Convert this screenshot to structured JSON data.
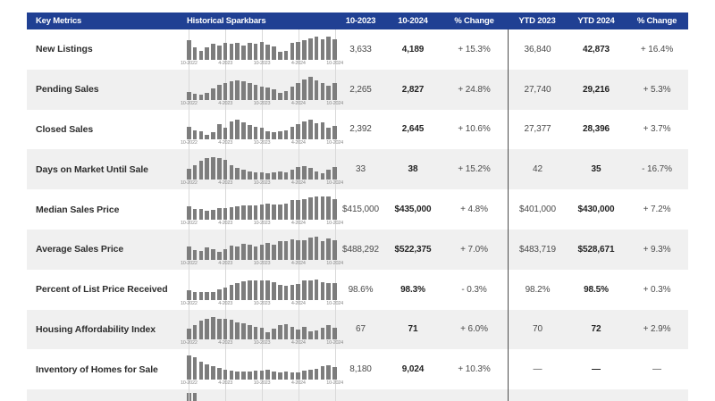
{
  "table": {
    "columns": [
      "Key Metrics",
      "Historical Sparkbars",
      "10-2023",
      "10-2024",
      "% Change",
      "YTD 2023",
      "YTD 2024",
      "% Change"
    ],
    "spark_axis_labels": [
      "10-2022",
      "4-2023",
      "10-2023",
      "4-2024",
      "10-2024"
    ],
    "rows": [
      {
        "metric": "New Listings",
        "prior": "3,633",
        "current": "4,189",
        "change": "+ 15.3%",
        "ytd_prior": "36,840",
        "ytd_current": "42,873",
        "ytd_change": "+ 16.4%",
        "spark": [
          82,
          52,
          38,
          52,
          65,
          60,
          70,
          65,
          68,
          60,
          70,
          66,
          75,
          64,
          55,
          32,
          38,
          68,
          75,
          82,
          88,
          95,
          85,
          95,
          85
        ]
      },
      {
        "metric": "Pending Sales",
        "prior": "2,265",
        "current": "2,827",
        "change": "+ 24.8%",
        "ytd_prior": "27,740",
        "ytd_current": "29,216",
        "ytd_change": "+ 5.3%",
        "spark": [
          32,
          25,
          22,
          28,
          48,
          60,
          68,
          78,
          80,
          78,
          68,
          60,
          55,
          50,
          42,
          28,
          35,
          55,
          68,
          85,
          95,
          82,
          70,
          58,
          68
        ]
      },
      {
        "metric": "Closed Sales",
        "prior": "2,392",
        "current": "2,645",
        "change": "+ 10.6%",
        "ytd_prior": "27,377",
        "ytd_current": "28,396",
        "ytd_change": "+ 3.7%",
        "spark": [
          52,
          40,
          35,
          22,
          30,
          65,
          48,
          75,
          82,
          72,
          62,
          55,
          48,
          35,
          32,
          35,
          40,
          52,
          65,
          75,
          85,
          70,
          72,
          48,
          58
        ]
      },
      {
        "metric": "Days on Market Until Sale",
        "prior": "33",
        "current": "38",
        "change": "+ 15.2%",
        "ytd_prior": "42",
        "ytd_current": "35",
        "ytd_change": "- 16.7%",
        "spark": [
          45,
          60,
          78,
          88,
          95,
          90,
          82,
          62,
          50,
          42,
          35,
          30,
          30,
          28,
          30,
          35,
          30,
          42,
          52,
          58,
          50,
          35,
          28,
          42,
          52
        ]
      },
      {
        "metric": "Median Sales Price",
        "prior": "$415,000",
        "current": "$435,000",
        "change": "+ 4.8%",
        "ytd_prior": "$401,000",
        "ytd_current": "$430,000",
        "ytd_change": "+ 7.2%",
        "spark": [
          55,
          45,
          44,
          38,
          42,
          48,
          48,
          52,
          55,
          60,
          60,
          58,
          62,
          68,
          64,
          62,
          68,
          82,
          80,
          86,
          92,
          95,
          95,
          95,
          85
        ]
      },
      {
        "metric": "Average Sales Price",
        "prior": "$488,292",
        "current": "$522,375",
        "change": "+ 7.0%",
        "ytd_prior": "$483,719",
        "ytd_current": "$528,671",
        "ytd_change": "+ 9.3%",
        "spark": [
          55,
          38,
          35,
          50,
          42,
          32,
          45,
          60,
          55,
          65,
          62,
          55,
          62,
          68,
          62,
          75,
          78,
          85,
          80,
          82,
          90,
          95,
          78,
          88,
          82
        ]
      },
      {
        "metric": "Percent of List Price Received",
        "prior": "98.6%",
        "current": "98.3%",
        "change": "- 0.3%",
        "ytd_prior": "98.2%",
        "ytd_current": "98.5%",
        "ytd_change": "+ 0.3%",
        "spark": [
          38,
          32,
          30,
          30,
          32,
          42,
          50,
          62,
          68,
          75,
          78,
          80,
          80,
          78,
          72,
          62,
          58,
          62,
          65,
          78,
          80,
          85,
          72,
          70,
          68
        ]
      },
      {
        "metric": "Housing Affordability Index",
        "prior": "67",
        "current": "71",
        "change": "+ 6.0%",
        "ytd_prior": "70",
        "ytd_current": "72",
        "ytd_change": "+ 2.9%",
        "spark": [
          45,
          62,
          78,
          88,
          95,
          85,
          88,
          82,
          72,
          68,
          62,
          52,
          48,
          30,
          45,
          62,
          65,
          52,
          42,
          52,
          35,
          38,
          48,
          62,
          50
        ]
      },
      {
        "metric": "Inventory of Homes for Sale",
        "prior": "8,180",
        "current": "9,024",
        "change": "+ 10.3%",
        "ytd_prior": "—",
        "ytd_current": "—",
        "ytd_change": "—",
        "spark": [
          100,
          92,
          75,
          62,
          55,
          48,
          40,
          36,
          34,
          33,
          34,
          36,
          38,
          42,
          35,
          32,
          33,
          30,
          30,
          38,
          42,
          46,
          55,
          58,
          52
        ]
      }
    ],
    "partial_row": {
      "spark_fragment": [
        12,
        9
      ]
    }
  },
  "colors": {
    "header_bg": "#204093",
    "header_text": "#ffffff",
    "row_alt_bg": "#f0f0f0",
    "bar": "#7d7d7d",
    "gridline": "#d9d9d9",
    "divider": "#4d4d4d",
    "metric_text": "#2e2e2e",
    "value_text": "#4a4a4a",
    "spark_label_text": "#8a8a8a"
  }
}
